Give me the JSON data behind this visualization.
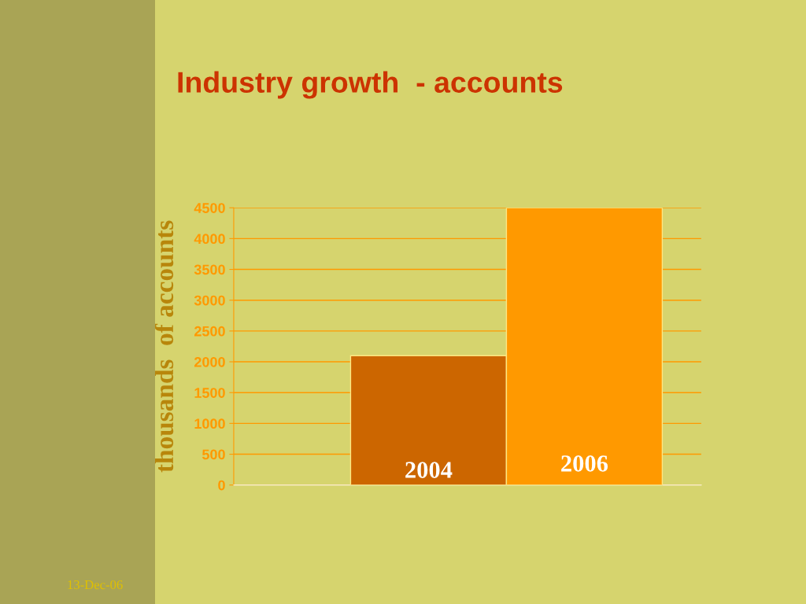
{
  "chart_data": {
    "type": "bar",
    "title": "Industry growth  - accounts",
    "ylabel": "thousands  of accounts",
    "categories": [
      "2004",
      "2006"
    ],
    "values": [
      2100,
      4500
    ],
    "colors": [
      "#cc6600",
      "#ff9900"
    ],
    "ylim": [
      0,
      4500
    ],
    "yticks": [
      0,
      500,
      1000,
      1500,
      2000,
      2500,
      3000,
      3500,
      4000,
      4500
    ],
    "grid": "y",
    "annotations": [
      "13-Dec-06"
    ]
  }
}
